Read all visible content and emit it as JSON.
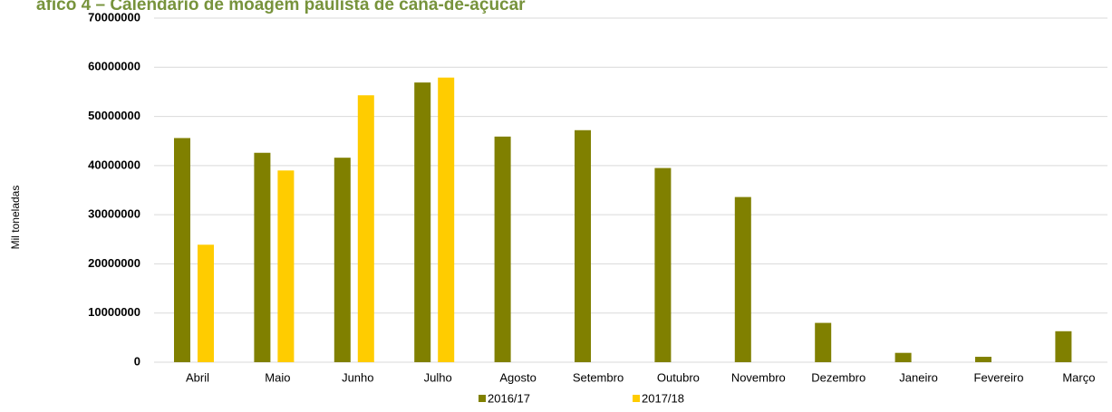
{
  "chart_data": {
    "type": "bar",
    "title": "áfico 4 – Calendário de moagem paulista de cana-de-açúcar",
    "y_label": "Mil toneladas",
    "categories": [
      "Abril",
      "Maio",
      "Junho",
      "Julho",
      "Agosto",
      "Setembro",
      "Outubro",
      "Novembro",
      "Dezembro",
      "Janeiro",
      "Fevereiro",
      "Março"
    ],
    "series": [
      {
        "name": "2016/17",
        "color": "#808000",
        "values": [
          45600000,
          42600000,
          41600000,
          56900000,
          45900000,
          47200000,
          39500000,
          33600000,
          8000000,
          1900000,
          1100000,
          6300000
        ]
      },
      {
        "name": "2017/18",
        "color": "#ffcc00",
        "values": [
          23900000,
          39000000,
          54300000,
          57900000,
          null,
          null,
          null,
          null,
          null,
          null,
          null,
          null
        ]
      }
    ],
    "ylim": [
      0,
      70000000
    ],
    "yticks": [
      0,
      10000000,
      20000000,
      30000000,
      40000000,
      50000000,
      60000000,
      70000000
    ],
    "grid": true,
    "legend": "bottom"
  }
}
